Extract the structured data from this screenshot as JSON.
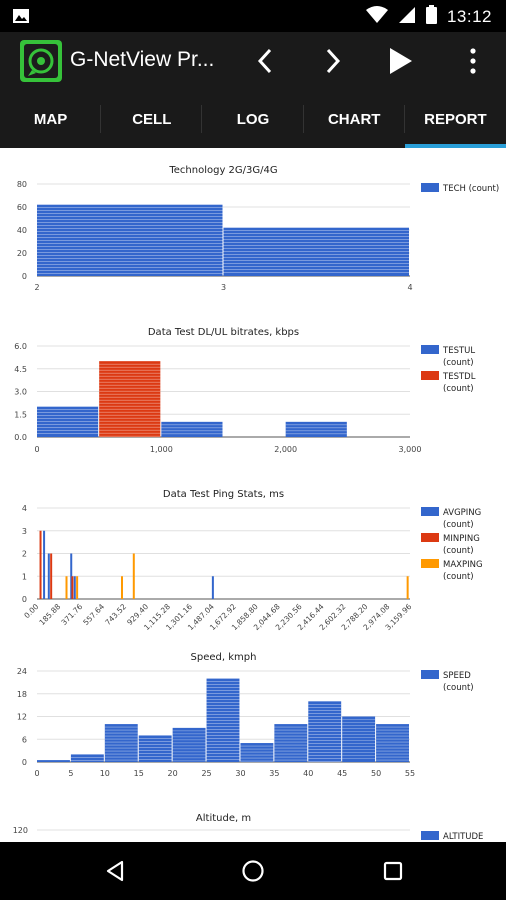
{
  "status_bar": {
    "time": "13:12"
  },
  "toolbar": {
    "app_title": "G-NetView Pr..."
  },
  "tabs": [
    {
      "label": "MAP",
      "active": false
    },
    {
      "label": "CELL",
      "active": false
    },
    {
      "label": "LOG",
      "active": false
    },
    {
      "label": "CHART",
      "active": false
    },
    {
      "label": "REPORT",
      "active": true
    }
  ],
  "colors": {
    "blue": "#3366cc",
    "red": "#dc3912",
    "orange": "#ff9900",
    "tab_indicator": "#2a9fd8"
  },
  "chart_data": [
    {
      "type": "histogram",
      "title": "Technology 2G/3G/4G",
      "xlabel": "",
      "ylabel": "",
      "xlim": [
        2,
        4
      ],
      "ylim": [
        0,
        80
      ],
      "x_ticks": [
        "2",
        "3",
        "4"
      ],
      "y_ticks": [
        "0",
        "20",
        "40",
        "60",
        "80"
      ],
      "bins": [
        {
          "x0": 2,
          "x1": 3,
          "value": 62
        },
        {
          "x0": 3,
          "x1": 4,
          "value": 42
        }
      ],
      "series": [
        {
          "name": "TECH (count)",
          "color": "#3366cc"
        }
      ],
      "legend": "right"
    },
    {
      "type": "histogram",
      "title": "Data Test DL/UL bitrates, kbps",
      "xlabel": "",
      "ylabel": "",
      "xlim": [
        0,
        3000
      ],
      "ylim": [
        0,
        6
      ],
      "x_ticks": [
        "0",
        "1,000",
        "2,000",
        "3,000"
      ],
      "y_ticks": [
        "0.0",
        "1.5",
        "3.0",
        "4.5",
        "6.0"
      ],
      "series": [
        {
          "name": "TESTUL",
          "sub": "(count)",
          "color": "#3366cc",
          "bins": [
            {
              "x0": 0,
              "x1": 500,
              "value": 2
            },
            {
              "x0": 1000,
              "x1": 1500,
              "value": 1
            },
            {
              "x0": 2000,
              "x1": 2500,
              "value": 1
            }
          ]
        },
        {
          "name": "TESTDL",
          "sub": "(count)",
          "color": "#dc3912",
          "bins": [
            {
              "x0": 500,
              "x1": 1000,
              "value": 5
            }
          ]
        }
      ],
      "legend": "right"
    },
    {
      "type": "histogram",
      "title": "Data Test Ping Stats, ms",
      "xlabel": "",
      "ylabel": "",
      "xlim": [
        0,
        3159.96
      ],
      "ylim": [
        0,
        4
      ],
      "x_ticks": [
        "0.00",
        "185.88",
        "371.76",
        "557.64",
        "743.52",
        "929.40",
        "1,115.28",
        "1,301.16",
        "1,487.04",
        "1,672.92",
        "1,858.80",
        "2,044.68",
        "2,230.56",
        "2,416.44",
        "2,602.32",
        "2,788.20",
        "2,974.08",
        "3,159.96"
      ],
      "y_ticks": [
        "0",
        "1",
        "2",
        "3",
        "4"
      ],
      "series": [
        {
          "name": "AVGPING",
          "sub": "(count)",
          "color": "#3366cc",
          "bars": [
            {
              "x": 60,
              "value": 3
            },
            {
              "x": 100,
              "value": 2
            },
            {
              "x": 290,
              "value": 2
            },
            {
              "x": 320,
              "value": 1
            },
            {
              "x": 1490,
              "value": 1
            }
          ]
        },
        {
          "name": "MINPING",
          "sub": "(count)",
          "color": "#dc3912",
          "bars": [
            {
              "x": 30,
              "value": 3
            },
            {
              "x": 120,
              "value": 2
            },
            {
              "x": 300,
              "value": 1
            }
          ]
        },
        {
          "name": "MAXPING",
          "sub": "(count)",
          "color": "#ff9900",
          "bars": [
            {
              "x": 250,
              "value": 1
            },
            {
              "x": 340,
              "value": 1
            },
            {
              "x": 720,
              "value": 1
            },
            {
              "x": 820,
              "value": 2
            },
            {
              "x": 3140,
              "value": 1
            }
          ]
        }
      ],
      "legend": "right"
    },
    {
      "type": "histogram",
      "title": "Speed, kmph",
      "xlabel": "",
      "ylabel": "",
      "xlim": [
        0,
        55
      ],
      "ylim": [
        0,
        24
      ],
      "x_ticks": [
        "0",
        "5",
        "10",
        "15",
        "20",
        "25",
        "30",
        "35",
        "40",
        "45",
        "50",
        "55"
      ],
      "y_ticks": [
        "0",
        "6",
        "12",
        "18",
        "24"
      ],
      "bins": [
        {
          "x0": 0,
          "x1": 5,
          "value": 0.5
        },
        {
          "x0": 5,
          "x1": 10,
          "value": 2
        },
        {
          "x0": 10,
          "x1": 15,
          "value": 10
        },
        {
          "x0": 15,
          "x1": 20,
          "value": 7
        },
        {
          "x0": 20,
          "x1": 25,
          "value": 9
        },
        {
          "x0": 25,
          "x1": 30,
          "value": 22
        },
        {
          "x0": 30,
          "x1": 35,
          "value": 5
        },
        {
          "x0": 35,
          "x1": 40,
          "value": 10
        },
        {
          "x0": 40,
          "x1": 45,
          "value": 16
        },
        {
          "x0": 45,
          "x1": 50,
          "value": 12
        },
        {
          "x0": 50,
          "x1": 55,
          "value": 10
        }
      ],
      "series": [
        {
          "name": "SPEED",
          "sub": "(count)",
          "color": "#3366cc"
        }
      ],
      "legend": "right"
    },
    {
      "type": "histogram",
      "title": "Altitude, m",
      "xlabel": "",
      "ylabel": "",
      "y_ticks": [
        "120"
      ],
      "series": [
        {
          "name": "ALTITUDE",
          "color": "#3366cc"
        }
      ],
      "legend": "right"
    }
  ]
}
